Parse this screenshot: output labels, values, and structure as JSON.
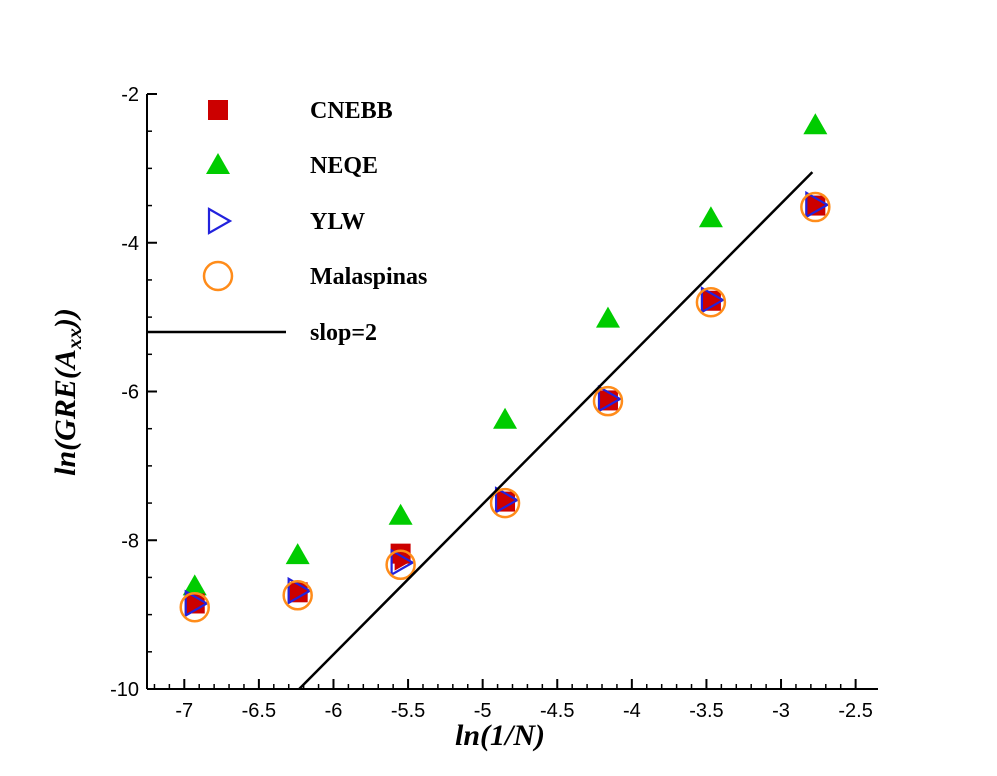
{
  "chart_data": {
    "type": "scatter",
    "xlabel": "ln(1/N)",
    "ylabel_main": "ln(GRE(A",
    "ylabel_sub": "xx",
    "ylabel_end": "))",
    "xlim": [
      -7.25,
      -2.35
    ],
    "ylim": [
      -10,
      -2
    ],
    "x_ticks": [
      -7,
      -6.5,
      -6,
      -5.5,
      -5,
      -4.5,
      -4,
      -3.5,
      -3,
      -2.5
    ],
    "x_tick_labels": [
      "-7",
      "-6.5",
      "-6",
      "-5.5",
      "-5",
      "-4.5",
      "-4",
      "-3.5",
      "-3",
      "-2.5"
    ],
    "y_ticks": [
      -10,
      -8,
      -6,
      -4,
      -2
    ],
    "y_tick_labels": [
      "-10",
      "-8",
      "-6",
      "-4",
      "-2"
    ],
    "grid": false,
    "legend_position": "top-left",
    "series": [
      {
        "name": "CNEBB",
        "marker": "square",
        "color": "#cc0000",
        "x": [
          -6.93,
          -6.24,
          -5.55,
          -4.85,
          -4.16,
          -3.47,
          -2.77
        ],
        "y": [
          -8.85,
          -8.7,
          -8.18,
          -7.48,
          -6.12,
          -4.78,
          -3.5
        ]
      },
      {
        "name": "NEQE",
        "marker": "triangle-up",
        "color": "#00cc00",
        "x": [
          -6.93,
          -6.24,
          -5.55,
          -4.85,
          -4.16,
          -3.47,
          -2.77
        ],
        "y": [
          -8.62,
          -8.2,
          -7.67,
          -6.38,
          -5.02,
          -3.67,
          -2.42
        ]
      },
      {
        "name": "YLW",
        "marker": "triangle-right",
        "color": "#2222dd",
        "x": [
          -6.93,
          -6.24,
          -5.55,
          -4.85,
          -4.16,
          -3.47,
          -2.77
        ],
        "y": [
          -8.85,
          -8.68,
          -8.3,
          -7.46,
          -6.1,
          -4.77,
          -3.49
        ]
      },
      {
        "name": "Malaspinas",
        "marker": "circle",
        "color": "#ff8c1a",
        "x": [
          -6.93,
          -6.24,
          -5.55,
          -4.85,
          -4.16,
          -3.47,
          -2.77
        ],
        "y": [
          -8.9,
          -8.74,
          -8.33,
          -7.5,
          -6.13,
          -4.8,
          -3.52
        ]
      },
      {
        "name": "slop=2",
        "marker": "line",
        "color": "#000000",
        "x": [
          -6.23,
          -2.79
        ],
        "y": [
          -10,
          -3.05
        ]
      }
    ]
  }
}
